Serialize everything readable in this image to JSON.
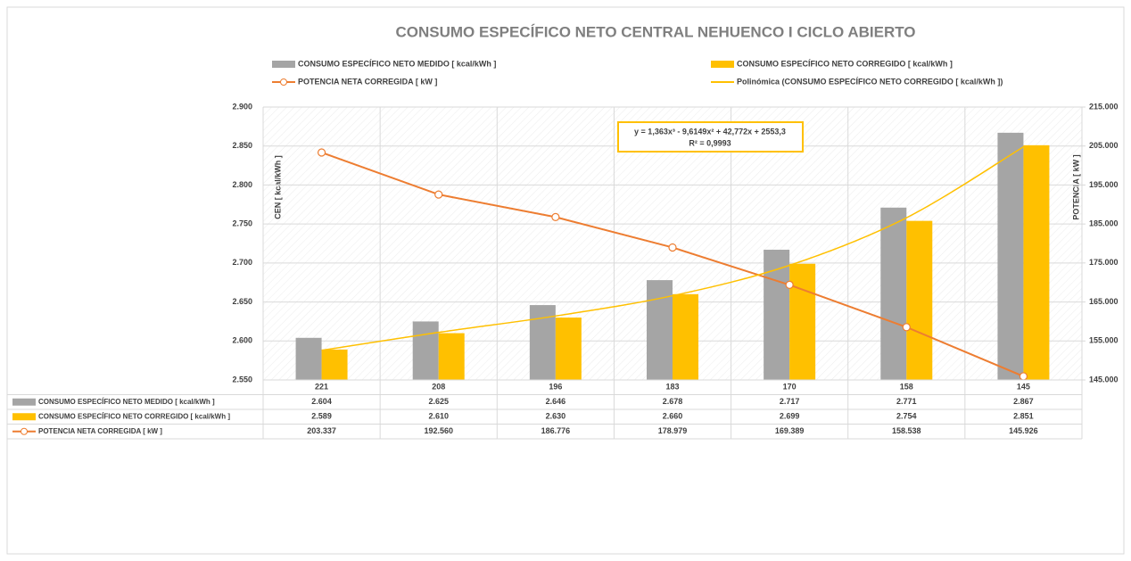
{
  "chart_data": {
    "type": "bar",
    "title": "CONSUMO ESPECÍFICO NETO CENTRAL NEHUENCO I CICLO ABIERTO",
    "categories": [
      "221",
      "208",
      "196",
      "183",
      "170",
      "158",
      "145"
    ],
    "series": [
      {
        "name": "CONSUMO ESPECÍFICO NETO MEDIDO [ kcal/kWh ]",
        "color": "#a5a5a5",
        "type": "bar",
        "values": [
          2604,
          2625,
          2646,
          2678,
          2717,
          2771,
          2867
        ],
        "value_labels": [
          "2.604",
          "2.625",
          "2.646",
          "2.678",
          "2.717",
          "2.771",
          "2.867"
        ]
      },
      {
        "name": "CONSUMO ESPECÍFICO NETO CORREGIDO [ kcal/kWh ]",
        "color": "#ffc000",
        "type": "bar",
        "values": [
          2589,
          2610,
          2630,
          2660,
          2699,
          2754,
          2851
        ],
        "value_labels": [
          "2.589",
          "2.610",
          "2.630",
          "2.660",
          "2.699",
          "2.754",
          "2.851"
        ]
      },
      {
        "name": "POTENCIA NETA CORREGIDA [ kW ]",
        "color": "#ed7d31",
        "type": "line",
        "axis": "y2",
        "values": [
          203337,
          192560,
          186776,
          178979,
          169389,
          158538,
          145926
        ],
        "value_labels": [
          "203.337",
          "192.560",
          "186.776",
          "178.979",
          "169.389",
          "158.538",
          "145.926"
        ]
      },
      {
        "name": "Polinómica (CONSUMO ESPECÍFICO NETO CORREGIDO [ kcal/kWh ])",
        "color": "#ffc000",
        "type": "trendline",
        "values": [
          2588,
          2611,
          2632,
          2658,
          2697,
          2758,
          2849
        ]
      }
    ],
    "ylabel": "CEN [ kcal/kWh ]",
    "y2label": "POTENCIA [ kW ]",
    "annotation": [
      "y = 1,363x³ - 9,6149x² + 42,772x + 2553,3",
      "R² = 0,9993"
    ],
    "ylim": [
      2550,
      2900
    ],
    "yticks": [
      {
        "value": 2550,
        "label": "2.550"
      },
      {
        "value": 2600,
        "label": "2.600"
      },
      {
        "value": 2650,
        "label": "2.650"
      },
      {
        "value": 2700,
        "label": "2.700"
      },
      {
        "value": 2750,
        "label": "2.750"
      },
      {
        "value": 2800,
        "label": "2.800"
      },
      {
        "value": 2850,
        "label": "2.850"
      },
      {
        "value": 2900,
        "label": "2.900"
      }
    ],
    "y2lim": [
      145000,
      215000
    ],
    "y2ticks": [
      {
        "value": 145000,
        "label": "145.000"
      },
      {
        "value": 155000,
        "label": "155.000"
      },
      {
        "value": 165000,
        "label": "165.000"
      },
      {
        "value": 175000,
        "label": "175.000"
      },
      {
        "value": 185000,
        "label": "185.000"
      },
      {
        "value": 195000,
        "label": "195.000"
      },
      {
        "value": 205000,
        "label": "205.000"
      },
      {
        "value": 215000,
        "label": "215.000"
      }
    ],
    "grid": true
  }
}
